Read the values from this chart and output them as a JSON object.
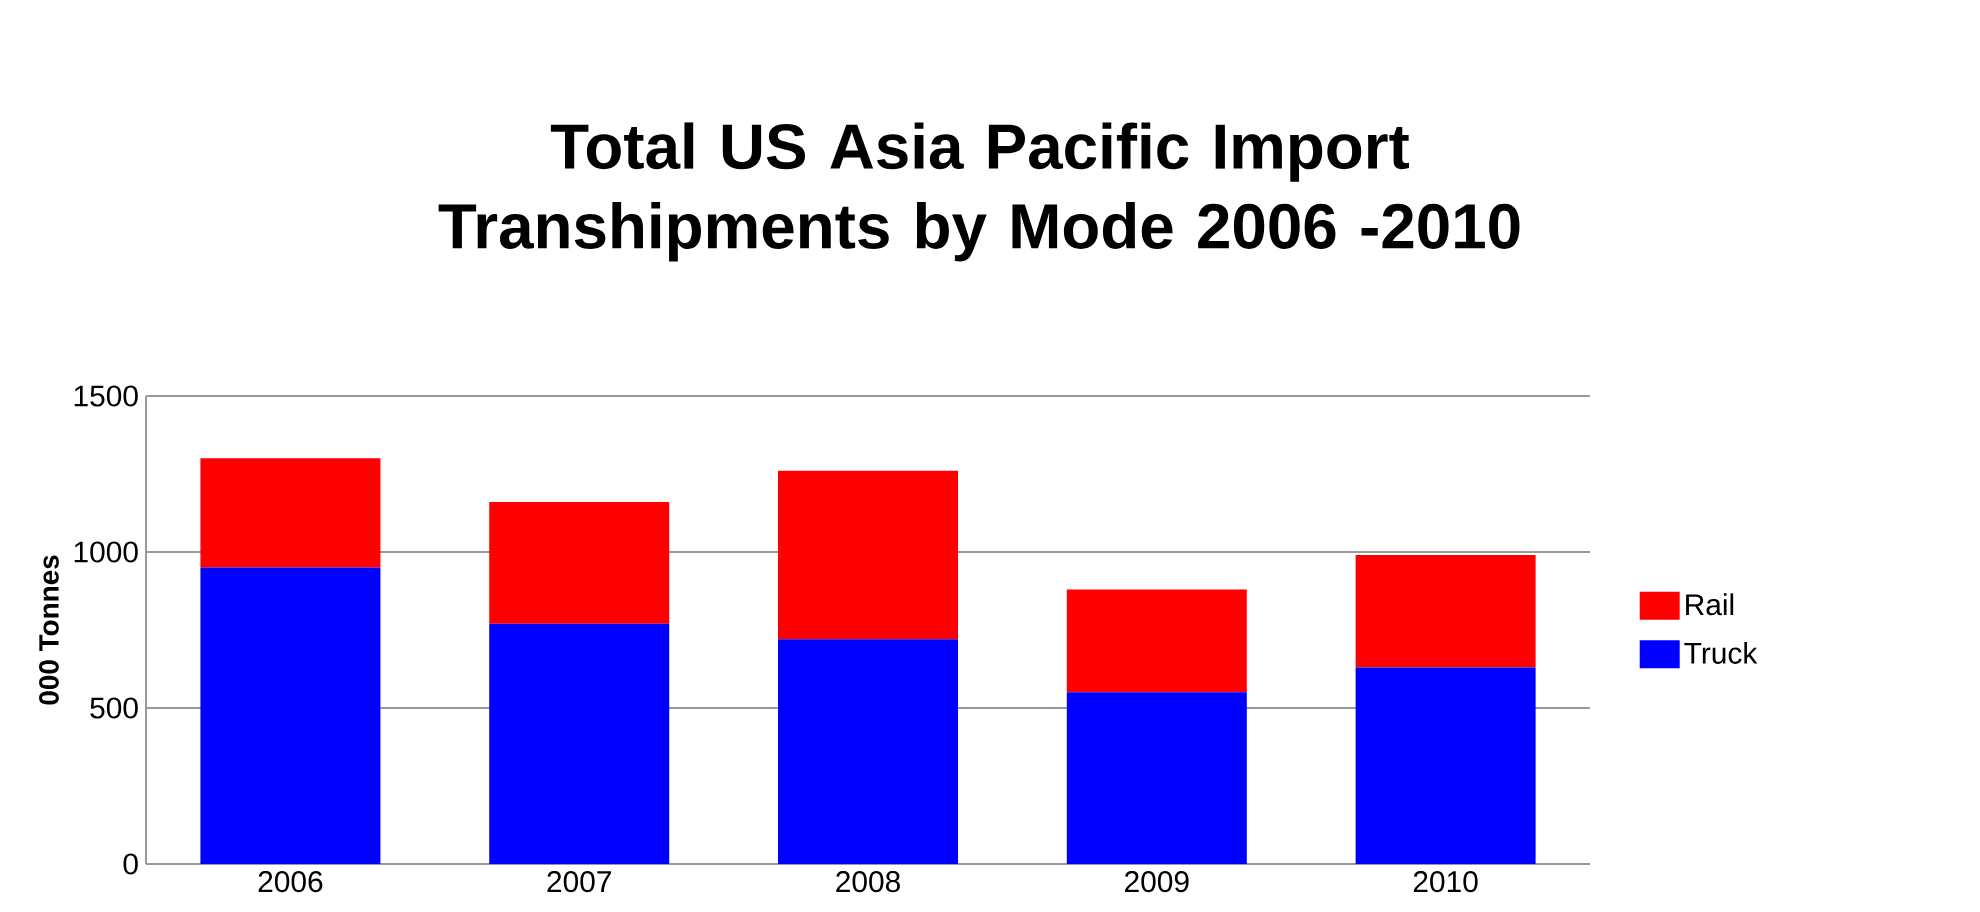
{
  "chart_data": {
    "type": "bar",
    "title": "Total US Asia Pacific Import Transhipments by Mode 2006 -2010",
    "ylabel": "000 Tonnes",
    "categories": [
      "2006",
      "2007",
      "2008",
      "2009",
      "2010"
    ],
    "stacked": true,
    "series": [
      {
        "name": "Truck",
        "color": "#0000ff",
        "values": [
          950,
          770,
          720,
          550,
          630
        ]
      },
      {
        "name": "Rail",
        "color": "#ff0000",
        "values": [
          350,
          390,
          540,
          330,
          360
        ]
      }
    ],
    "ylim": [
      0,
      1500
    ],
    "yticks": [
      0,
      500,
      1000,
      1500
    ],
    "grid": "y",
    "legend": "right"
  }
}
